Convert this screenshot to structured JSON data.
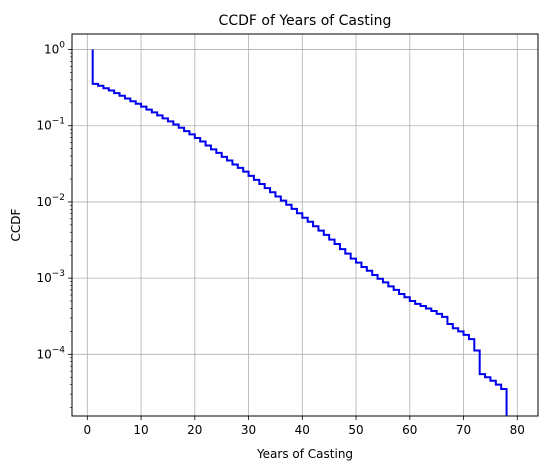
{
  "chart_data": {
    "type": "line",
    "title": "CCDF of Years of Casting",
    "xlabel": "Years of Casting",
    "ylabel": "CCDF",
    "yscale": "log",
    "xlim": [
      -2.85,
      83.85
    ],
    "ylim": [
      1.55e-05,
      1.6
    ],
    "grid": true,
    "x_ticks": [
      0,
      10,
      20,
      30,
      40,
      50,
      60,
      70,
      80
    ],
    "y_ticks": [
      {
        "value": 1,
        "base": "10",
        "exp": "0"
      },
      {
        "value": 0.1,
        "base": "10",
        "exp": "−1"
      },
      {
        "value": 0.01,
        "base": "10",
        "exp": "−2"
      },
      {
        "value": 0.001,
        "base": "10",
        "exp": "−3"
      },
      {
        "value": 0.0001,
        "base": "10",
        "exp": "−4"
      }
    ],
    "series": [
      {
        "color": "#0000ee",
        "step": true,
        "x": [
          1,
          1,
          2,
          3,
          4,
          5,
          6,
          7,
          8,
          9,
          10,
          11,
          12,
          13,
          14,
          15,
          16,
          17,
          18,
          19,
          20,
          21,
          22,
          23,
          24,
          25,
          26,
          27,
          28,
          29,
          30,
          31,
          32,
          33,
          34,
          35,
          36,
          37,
          38,
          39,
          40,
          41,
          42,
          43,
          44,
          45,
          46,
          47,
          48,
          49,
          50,
          51,
          52,
          53,
          54,
          55,
          56,
          57,
          58,
          59,
          60,
          61,
          62,
          63,
          64,
          65,
          66,
          67,
          68,
          69,
          70,
          71,
          72,
          73,
          74,
          75,
          76,
          77,
          78,
          78
        ],
        "y": [
          1.0,
          0.355,
          0.335,
          0.31,
          0.29,
          0.268,
          0.248,
          0.228,
          0.21,
          0.194,
          0.178,
          0.163,
          0.15,
          0.137,
          0.125,
          0.114,
          0.104,
          0.094,
          0.085,
          0.077,
          0.069,
          0.062,
          0.055,
          0.049,
          0.044,
          0.039,
          0.035,
          0.031,
          0.028,
          0.025,
          0.022,
          0.0195,
          0.0172,
          0.0152,
          0.0134,
          0.0118,
          0.0104,
          0.0092,
          0.0081,
          0.0071,
          0.0062,
          0.0055,
          0.0048,
          0.0042,
          0.0037,
          0.0032,
          0.0028,
          0.0024,
          0.0021,
          0.0018,
          0.0016,
          0.0014,
          0.00125,
          0.0011,
          0.00098,
          0.00088,
          0.00078,
          0.0007,
          0.00062,
          0.00056,
          0.0005,
          0.00046,
          0.00043,
          0.0004,
          0.00037,
          0.00034,
          0.00031,
          0.00025,
          0.00022,
          0.0002,
          0.00018,
          0.000158,
          0.000112,
          5.5e-05,
          5e-05,
          4.5e-05,
          4e-05,
          3.5e-05,
          2.8e-05,
          1.55e-05
        ]
      }
    ]
  }
}
